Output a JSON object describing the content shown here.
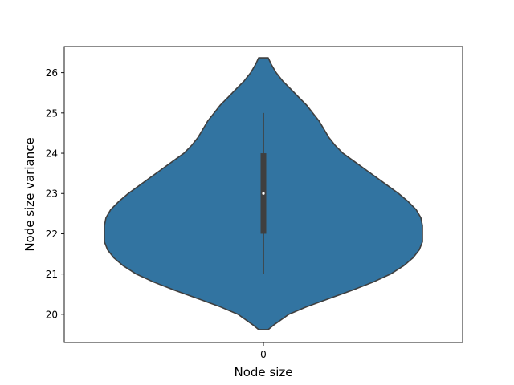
{
  "chart_data": {
    "type": "violin",
    "title": "",
    "xlabel": "Node size",
    "ylabel": "Node size variance",
    "categories": [
      "0"
    ],
    "ylim": [
      19.3,
      26.65
    ],
    "yticks": [
      20,
      21,
      22,
      23,
      24,
      25,
      26
    ],
    "grid": false,
    "legend": "none",
    "violin": {
      "color": "#3274a1",
      "edge_color": "#3f3f3f",
      "density_profile": [
        [
          19.62,
          0.03
        ],
        [
          19.75,
          0.07
        ],
        [
          20.0,
          0.16
        ],
        [
          20.2,
          0.28
        ],
        [
          20.4,
          0.42
        ],
        [
          20.6,
          0.56
        ],
        [
          20.8,
          0.69
        ],
        [
          21.0,
          0.8
        ],
        [
          21.2,
          0.88
        ],
        [
          21.4,
          0.94
        ],
        [
          21.6,
          0.98
        ],
        [
          21.8,
          1.0
        ],
        [
          22.0,
          1.0
        ],
        [
          22.2,
          1.0
        ],
        [
          22.4,
          0.99
        ],
        [
          22.6,
          0.96
        ],
        [
          22.8,
          0.91
        ],
        [
          23.0,
          0.85
        ],
        [
          23.2,
          0.78
        ],
        [
          23.4,
          0.71
        ],
        [
          23.6,
          0.64
        ],
        [
          23.8,
          0.57
        ],
        [
          24.0,
          0.5
        ],
        [
          24.2,
          0.45
        ],
        [
          24.4,
          0.41
        ],
        [
          24.6,
          0.38
        ],
        [
          24.8,
          0.35
        ],
        [
          25.0,
          0.31
        ],
        [
          25.2,
          0.27
        ],
        [
          25.4,
          0.22
        ],
        [
          25.6,
          0.17
        ],
        [
          25.8,
          0.12
        ],
        [
          26.0,
          0.08
        ],
        [
          26.2,
          0.05
        ],
        [
          26.37,
          0.03
        ]
      ],
      "box": {
        "whisker_low": 21.0,
        "q1": 22.0,
        "median": 23.0,
        "q3": 24.0,
        "whisker_high": 25.0
      }
    }
  }
}
